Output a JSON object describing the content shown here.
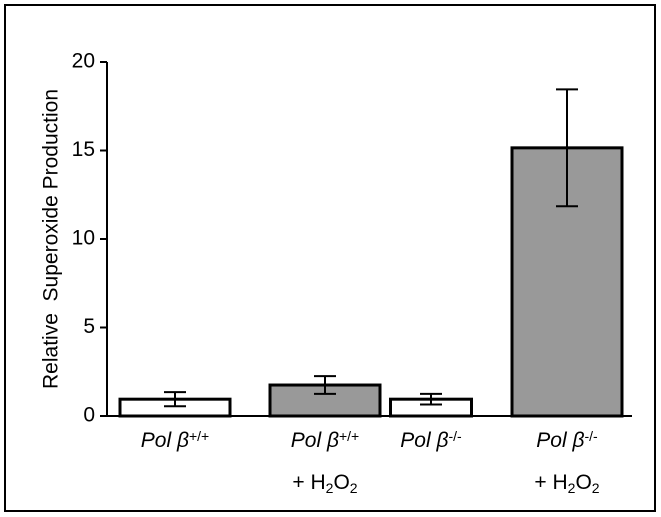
{
  "chart_data": {
    "type": "bar",
    "y_label": "Relative  Superoxide Production",
    "categories": [
      [
        [
          {
            "text": "Pol β",
            "style": "italic"
          },
          {
            "text": "+/+",
            "style": "sup"
          }
        ]
      ],
      [
        [
          {
            "text": "Pol β",
            "style": "italic"
          },
          {
            "text": "+/+",
            "style": "sup"
          }
        ],
        [
          {
            "text": "+ H"
          },
          {
            "text": "2",
            "style": "sub"
          },
          {
            "text": "O"
          },
          {
            "text": "2",
            "style": "sub"
          }
        ]
      ],
      [
        [
          {
            "text": "Pol β",
            "style": "italic"
          },
          {
            "text": "-/-",
            "style": "sup"
          }
        ]
      ],
      [
        [
          {
            "text": "Pol β",
            "style": "italic"
          },
          {
            "text": "-/-",
            "style": "sup"
          }
        ],
        [
          {
            "text": "+ H"
          },
          {
            "text": "2",
            "style": "sub"
          },
          {
            "text": "O"
          },
          {
            "text": "2",
            "style": "sub"
          }
        ]
      ]
    ],
    "values": [
      0.95,
      1.75,
      0.95,
      15.15
    ],
    "errors": [
      0.4,
      0.5,
      0.3,
      3.3
    ],
    "colors": [
      "#ffffff",
      "#999999",
      "#ffffff",
      "#999999"
    ],
    "ylim": [
      0,
      20
    ],
    "yticks": [
      0,
      5,
      10,
      15,
      20
    ],
    "grid": false
  }
}
